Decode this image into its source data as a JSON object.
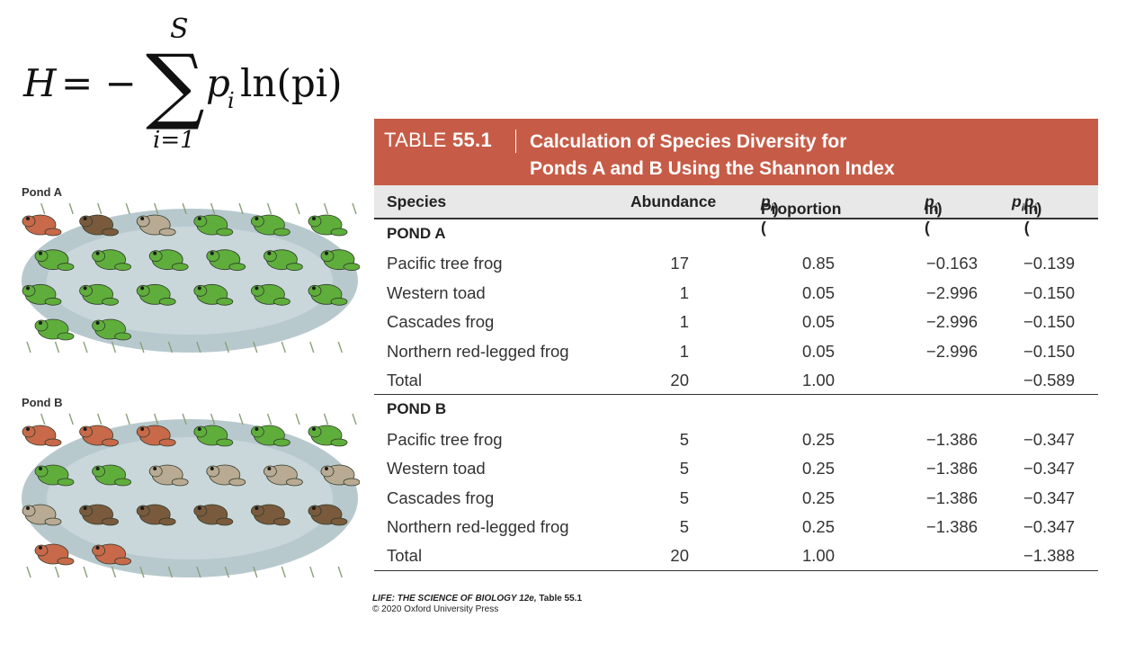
{
  "formula": {
    "lhs": "H",
    "eq": "= −",
    "upper": "S",
    "lower": "i=1",
    "term_p": "p",
    "term_sub": "i",
    "term_rest": "ln(pi)"
  },
  "ponds": {
    "a_label": "Pond A",
    "b_label": "Pond B"
  },
  "table": {
    "prefix": "TABLE",
    "number": "55.1",
    "title_line1": "Calculation of Species Diversity for",
    "title_line2": "Ponds A and B Using the Shannon Index",
    "headers": {
      "species": "Species",
      "abundance": "Abundance",
      "proportion": "Proportion (",
      "proportion_sub": "i",
      "proportion_p": "p",
      "proportion_close": ")",
      "ln": "ln (",
      "ln_p": "p",
      "ln_sub": "i",
      "ln_close": ")",
      "pln_p": "p",
      "pln_sub": "i",
      "pln_mid": " ln (",
      "pln_p2": "p",
      "pln_sub2": "i",
      "pln_close": ")"
    },
    "sections": [
      {
        "title": "POND A",
        "rows": [
          {
            "species": "Pacific tree frog",
            "abundance": "17",
            "proportion": "0.85",
            "ln": "−0.163",
            "pln": "−0.139"
          },
          {
            "species": "Western toad",
            "abundance": "1",
            "proportion": "0.05",
            "ln": "−2.996",
            "pln": "−0.150"
          },
          {
            "species": "Cascades frog",
            "abundance": "1",
            "proportion": "0.05",
            "ln": "−2.996",
            "pln": "−0.150"
          },
          {
            "species": "Northern red-legged frog",
            "abundance": "1",
            "proportion": "0.05",
            "ln": "−2.996",
            "pln": "−0.150"
          },
          {
            "species": "Total",
            "abundance": "20",
            "proportion": "1.00",
            "ln": "",
            "pln": "−0.589"
          }
        ]
      },
      {
        "title": "POND B",
        "rows": [
          {
            "species": "Pacific tree frog",
            "abundance": "5",
            "proportion": "0.25",
            "ln": "−1.386",
            "pln": "−0.347"
          },
          {
            "species": "Western toad",
            "abundance": "5",
            "proportion": "0.25",
            "ln": "−1.386",
            "pln": "−0.347"
          },
          {
            "species": "Cascades frog",
            "abundance": "5",
            "proportion": "0.25",
            "ln": "−1.386",
            "pln": "−0.347"
          },
          {
            "species": "Northern red-legged frog",
            "abundance": "5",
            "proportion": "0.25",
            "ln": "−1.386",
            "pln": "−0.347"
          },
          {
            "species": "Total",
            "abundance": "20",
            "proportion": "1.00",
            "ln": "",
            "pln": "−1.388"
          }
        ]
      }
    ]
  },
  "credit": {
    "line1": "LIFE: THE SCIENCE OF BIOLOGY 12e,",
    "line1_suffix": " Table 55.1",
    "line2": "© 2020 Oxford University Press"
  },
  "colors": {
    "header_bg": "#c65c47",
    "colhead_bg": "#e8e8e8",
    "tree_frog": "#5fae3c",
    "toad": "#b9aa93",
    "cascades_frog": "#7a5a3c",
    "red_legged_frog": "#c8694a"
  }
}
